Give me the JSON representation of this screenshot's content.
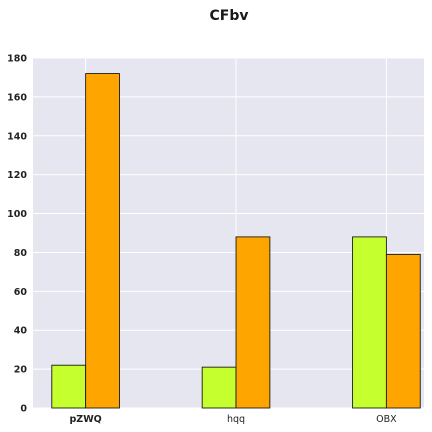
{
  "chart_data": {
    "type": "bar",
    "title": "CFbv",
    "xlabel": "",
    "ylabel": "",
    "categories": [
      "pZWQ",
      "hqq",
      "OBX"
    ],
    "series": [
      {
        "values": [
          22,
          21,
          88
        ],
        "color": "#c6ff2e"
      },
      {
        "values": [
          172,
          88,
          79
        ],
        "color": "#ffa500"
      }
    ],
    "ylim": [
      0,
      180
    ],
    "yticks": [
      0,
      20,
      40,
      60,
      80,
      100,
      120,
      140,
      160,
      180
    ],
    "grid": true,
    "background": "#e6e6f0",
    "grid_color": "#ffffff",
    "bar_edge_color": "#1a1a1a"
  }
}
